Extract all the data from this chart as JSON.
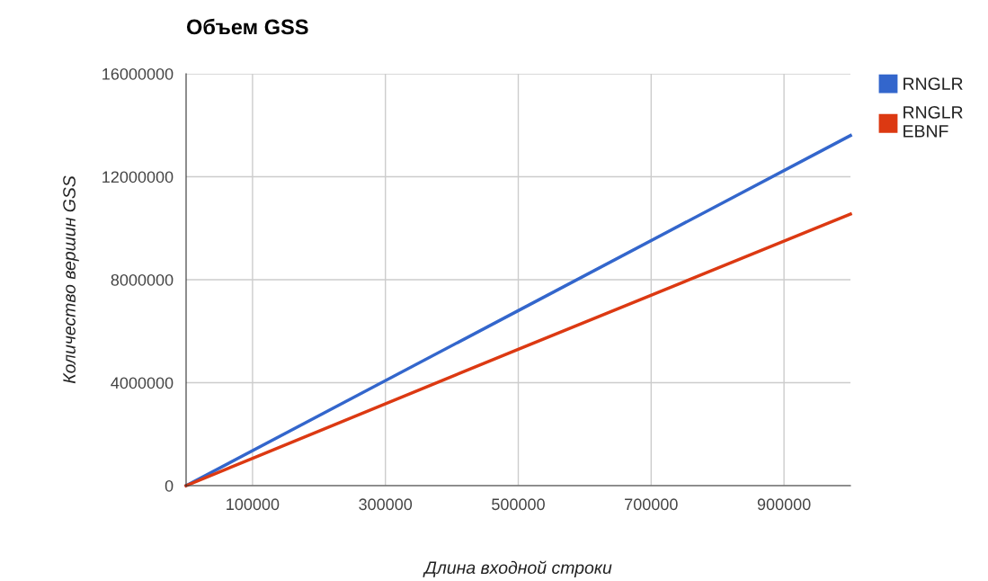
{
  "chart_data": {
    "type": "line",
    "title": "Объем GSS",
    "xlabel": "Длина входной строки",
    "ylabel": "Количество вершин GSS",
    "x": [
      0,
      500000,
      1000000
    ],
    "series": [
      {
        "name": "RNGLR",
        "color": "#3366cc",
        "values": [
          0,
          6800000,
          13600000
        ]
      },
      {
        "name": "RNGLR EBNF",
        "color": "#dc3912",
        "values": [
          0,
          5300000,
          10550000
        ]
      }
    ],
    "xlim": [
      0,
      1000000
    ],
    "xticks": [
      100000,
      300000,
      500000,
      700000,
      900000
    ],
    "ylim": [
      0,
      16000000
    ],
    "yticks": [
      0,
      4000000,
      8000000,
      12000000,
      16000000
    ],
    "grid": true,
    "legend": "top right",
    "marker": "none",
    "line_style": "solid"
  }
}
